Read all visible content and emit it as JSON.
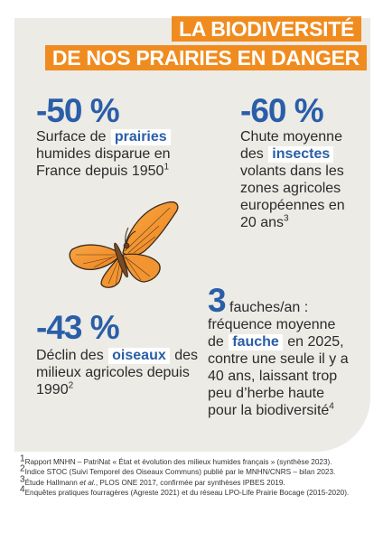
{
  "title": {
    "line1": "LA BIODIVERSITÉ",
    "line2": "DE NOS PRAIRIES EN DANGER"
  },
  "stats": {
    "prairies": {
      "value": "-50 %",
      "text_before": "Surface de",
      "highlight": "prairies",
      "text_after": "humides disparue en France depuis 1950",
      "ref": "1"
    },
    "insectes": {
      "value": "-60 %",
      "line1": "Chute moyenne",
      "text_before": "des",
      "highlight": "insectes",
      "text_after": "volants dans les zones agricoles européennes en 20 ans",
      "ref": "3"
    },
    "oiseaux": {
      "value": "-43 %",
      "text_before": "Déclin des",
      "highlight": "oiseaux",
      "text_after": "des milieux agricoles depuis 1990",
      "ref": "2"
    },
    "fauches": {
      "value": "3",
      "text_after_value": "fauches/an :",
      "line2": "fréquence moyenne",
      "text_before": "de",
      "highlight": "fauche",
      "text_after": "en 2025, contre une seule il y a 40 ans, laissant trop peu d’herbe haute pour la biodiversité",
      "ref": "4"
    }
  },
  "footnotes": [
    {
      "num": "1",
      "text": "Rapport MNHN – PatriNat « État et évolution des milieux humides français » (synthèse 2023)."
    },
    {
      "num": "2",
      "text": "Indice STOC (Suivi Temporel des Oiseaux Communs) publié par le MNHN/CNRS – bilan 2023."
    },
    {
      "num": "3",
      "text_before": "Étude Hallmann ",
      "text_italic": "et al.",
      "text_after": ", PLOS ONE 2017, confirmée par synthèses IPBES 2019."
    },
    {
      "num": "4",
      "text": "Enquêtes pratiques fourragères (Agreste 2021) et du réseau LPO-Life Prairie Bocage (2015-2020)."
    }
  ],
  "colors": {
    "accent_orange": "#f08c1f",
    "accent_blue": "#2a5ea8",
    "panel_bg": "#ecebe6",
    "butterfly_orange": "#f3922c"
  },
  "icons": [
    "butterfly-icon"
  ]
}
